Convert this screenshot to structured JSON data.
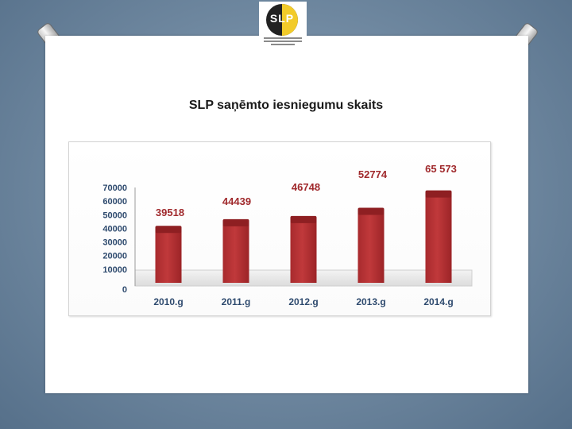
{
  "slide": {
    "title": "SLP saņēmto iesniegumu skaits",
    "logo_text": "SLP"
  },
  "chart_data": {
    "type": "bar",
    "title": "SLP saņēmto iesniegumu skaits",
    "categories": [
      "2010.g",
      "2011.g",
      "2012.g",
      "2013.g",
      "2014.g"
    ],
    "values": [
      39518,
      44439,
      46748,
      52774,
      65573
    ],
    "data_labels": [
      "39518",
      "44439",
      "46748",
      "52774",
      "65 573"
    ],
    "y_ticks": [
      "70000",
      "60000",
      "50000",
      "40000",
      "30000",
      "20000",
      "10000",
      "0"
    ],
    "ylim": [
      0,
      70000
    ],
    "xlabel": "",
    "ylabel": "",
    "grid": false,
    "colors": {
      "bar": "#c0393b",
      "bar_top": "#8e1f22",
      "label": "#a0292c"
    }
  }
}
